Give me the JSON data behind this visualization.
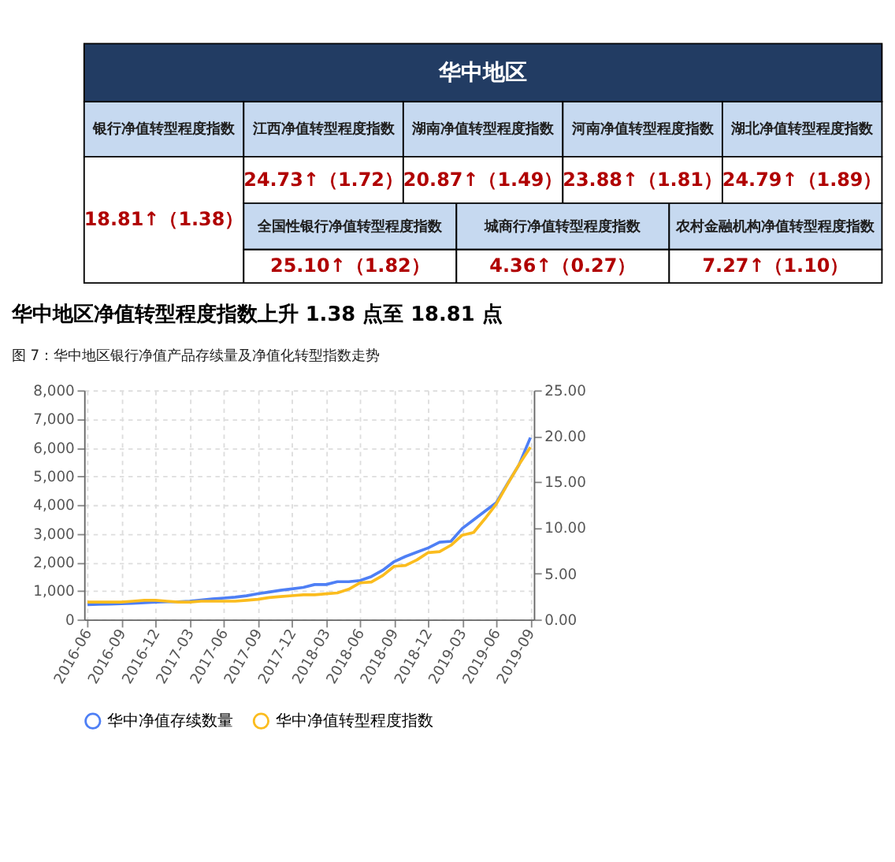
{
  "chart_data": [
    {
      "type": "other",
      "title": "华中地区",
      "annotations": [
        "银行净值转型程度指数",
        "18.81↑（1.38）",
        "江西净值转型程度指数",
        "24.73↑（1.72）",
        "湖南净值转型程度指数",
        "20.87↑（1.49）",
        "河南净值转型程度指数",
        "23.88↑（1.81）",
        "湖北净值转型程度指数",
        "24.79↑（1.89）",
        "全国性银行净值转型程度指数",
        "25.10↑（1.82）",
        "城商行净值转型程度指数",
        "4.36↑（0.27）",
        "农村金融机构净值转型程度指数",
        "7.27↑（1.10）"
      ]
    },
    {
      "type": "line",
      "title": "华中地区净值转型程度指数上升 1.38 点至 18.81 点",
      "subtitle": "图 7：华中地区银行净值产品存续量及净值化转型指数走势",
      "categories": [
        "2016-06",
        null,
        null,
        "2016-09",
        null,
        null,
        "2016-12",
        null,
        null,
        "2017-03",
        null,
        null,
        "2017-06",
        null,
        null,
        "2017-09",
        null,
        null,
        "2017-12",
        null,
        null,
        "2018-03",
        null,
        null,
        "2018-06",
        null,
        null,
        "2018-09",
        null,
        null,
        "2018-12",
        null,
        null,
        "2019-03",
        null,
        null,
        "2019-06",
        null,
        null,
        "2019-09"
      ],
      "series": [
        {
          "name": "华中净值存续数量",
          "color": "#4e7ff5",
          "values": [
            520,
            530,
            540,
            550,
            570,
            590,
            610,
            620,
            620,
            640,
            680,
            720,
            750,
            780,
            830,
            900,
            960,
            1020,
            1070,
            1120,
            1220,
            1220,
            1320,
            1320,
            1360,
            1500,
            1720,
            2020,
            2200,
            2350,
            2500,
            2700,
            2730,
            3180,
            3480,
            3780,
            4080,
            4750,
            5400,
            6350
          ]
        },
        {
          "name": "华中净值转型程度指数",
          "color": "#fbbc1e",
          "axis": "y2",
          "values": [
            1.9,
            1.9,
            1.9,
            1.9,
            2.0,
            2.1,
            2.1,
            2.0,
            1.9,
            1.9,
            2.0,
            2.0,
            2.0,
            2.0,
            2.1,
            2.2,
            2.4,
            2.5,
            2.6,
            2.7,
            2.7,
            2.8,
            2.9,
            3.3,
            4.0,
            4.1,
            4.8,
            5.8,
            5.9,
            6.5,
            7.3,
            7.4,
            8.1,
            9.2,
            9.5,
            11.0,
            12.6,
            14.8,
            16.9,
            18.81
          ]
        }
      ],
      "ylim": [
        0,
        8000
      ],
      "yticks": [
        0,
        {
          "value": 1000,
          "label": "1,000"
        },
        {
          "value": 2000,
          "label": "2,000"
        },
        {
          "value": 3000,
          "label": "3,000"
        },
        {
          "value": 4000,
          "label": "4,000"
        },
        {
          "value": 5000,
          "label": "5,000"
        },
        {
          "value": 6000,
          "label": "6,000"
        },
        {
          "value": 7000,
          "label": "7,000"
        },
        {
          "value": 8000,
          "label": "8,000"
        }
      ],
      "y2lim": [
        0,
        25
      ],
      "y2ticks": [
        {
          "value": 0,
          "label": "0.00"
        },
        {
          "value": 5,
          "label": "5.00"
        },
        {
          "value": 10,
          "label": "10.00"
        },
        {
          "value": 15,
          "label": "15.00"
        },
        {
          "value": 20,
          "label": "20.00"
        },
        {
          "value": 25,
          "label": "25.00"
        }
      ],
      "grid": true,
      "legend": "bottom"
    }
  ]
}
